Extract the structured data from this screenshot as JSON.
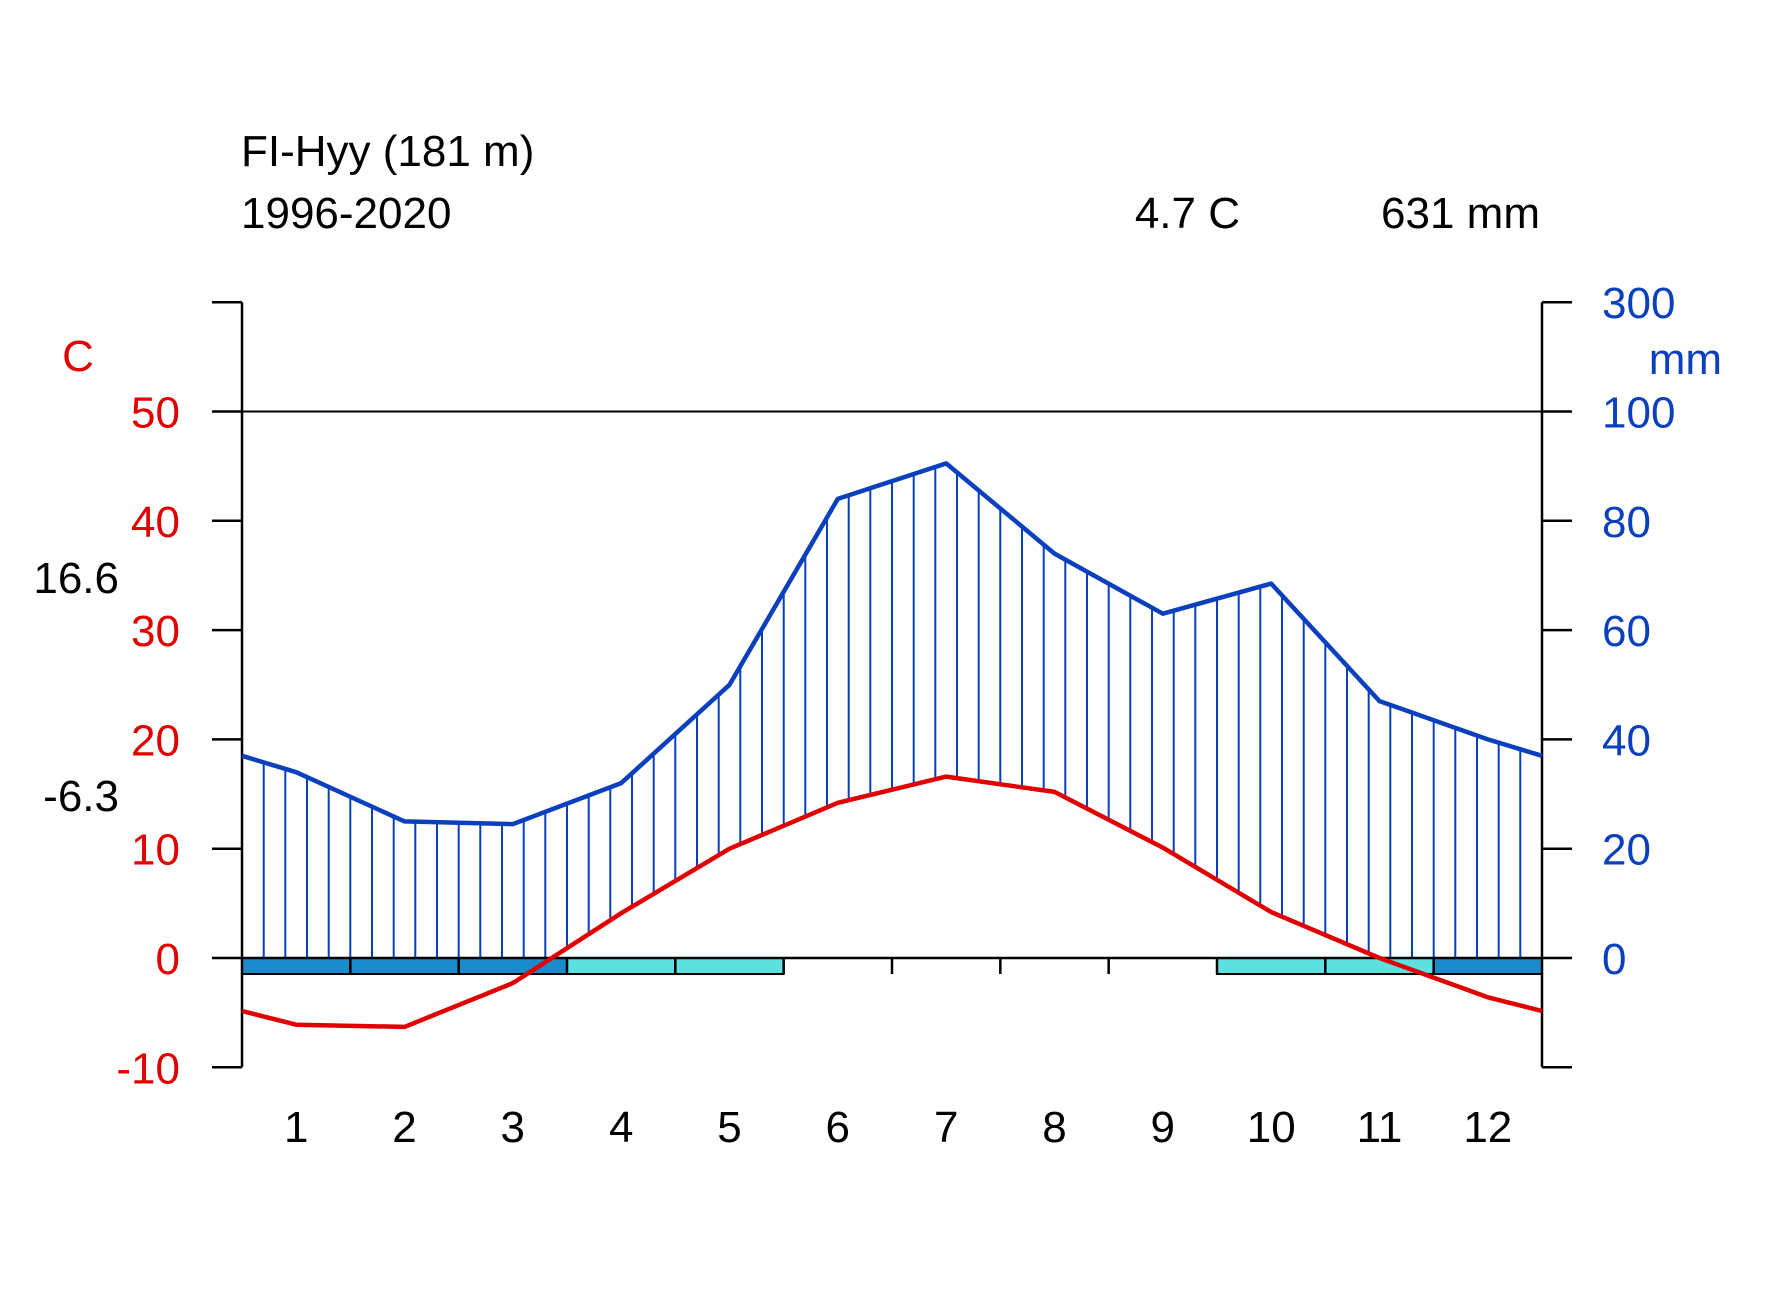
{
  "chart_data": {
    "type": "line",
    "title": "FI-Hyy (181 m)",
    "subtitle": "1996-2020",
    "mean_temperature_label": "4.7 C",
    "annual_precipitation_label": "631 mm",
    "max_temp_label": "16.6",
    "min_temp_label": "-6.3",
    "left_axis": {
      "unit": "C",
      "ticks": [
        -10,
        0,
        10,
        20,
        30,
        40,
        50
      ],
      "tick_labels": [
        "-10",
        "0",
        "10",
        "20",
        "30",
        "40",
        "50"
      ],
      "range": [
        -10,
        60
      ],
      "color": "#e00000"
    },
    "right_axis": {
      "unit": "mm",
      "ticks": [
        0,
        20,
        40,
        60,
        80,
        100,
        300
      ],
      "tick_labels": [
        "0",
        "20",
        "40",
        "60",
        "80",
        "100",
        "300"
      ],
      "color": "#0a3fbd"
    },
    "categories": [
      "1",
      "2",
      "3",
      "4",
      "5",
      "6",
      "7",
      "8",
      "9",
      "10",
      "11",
      "12"
    ],
    "series": [
      {
        "name": "temperature",
        "unit": "C",
        "color": "#e00000",
        "values": [
          -6.1,
          -6.3,
          -2.3,
          4.1,
          10.0,
          14.2,
          16.6,
          15.2,
          10.1,
          4.2,
          0.0,
          -3.6
        ]
      },
      {
        "name": "precipitation",
        "unit": "mm",
        "color": "#0a3fbd",
        "values": [
          34,
          25,
          24.5,
          32,
          50,
          84,
          90.5,
          74,
          63,
          68.5,
          47,
          40
        ]
      }
    ],
    "frost_bars": {
      "colors": {
        "sure": "#1a8ccc",
        "probable": "#5ce0e0"
      },
      "months": [
        "sure",
        "sure",
        "sure",
        "probable",
        "probable",
        "none",
        "none",
        "none",
        "none",
        "probable",
        "probable",
        "sure"
      ]
    },
    "grid": false
  }
}
